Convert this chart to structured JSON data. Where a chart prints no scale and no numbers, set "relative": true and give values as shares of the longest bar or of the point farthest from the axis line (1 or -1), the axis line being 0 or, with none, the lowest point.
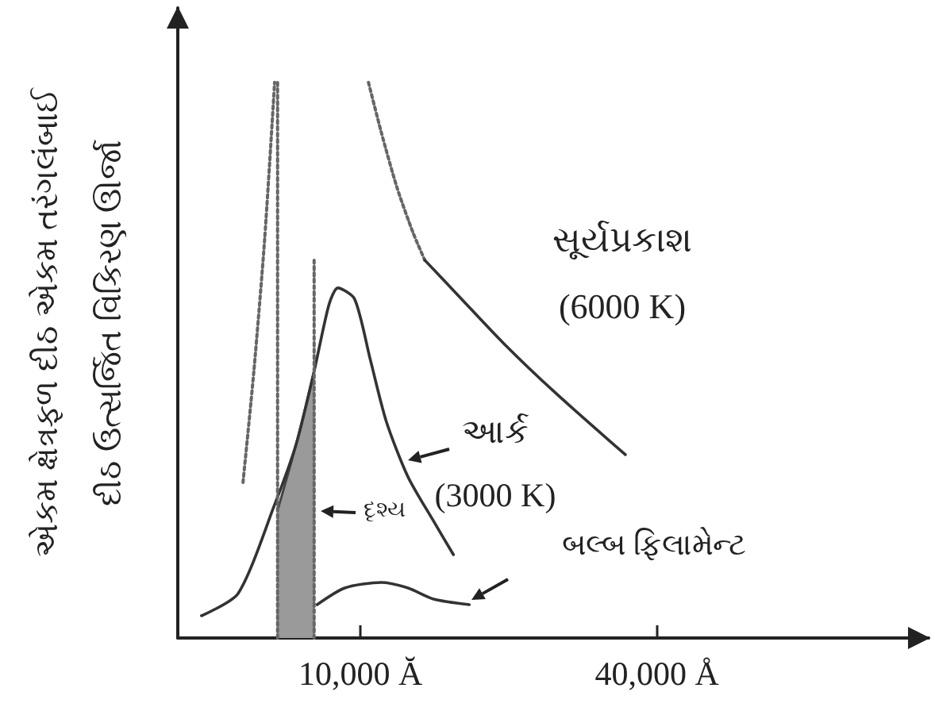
{
  "chart_data": {
    "type": "line",
    "relative": true,
    "ylabel": "એકમ ક્ષેત્રફળ દીઠ એકમ તરંગલંબાઈ\nદીઠ ઉત્સર્જિત વિકિરણ ઊર્જા",
    "xlim": [
      -8500,
      67500
    ],
    "xticks": [
      {
        "value": 10000,
        "label": "10,000 Ă"
      },
      {
        "value": 40000,
        "label": "40,000 Å"
      }
    ],
    "grid": false,
    "marker": "none",
    "annotations": [
      "સૂર્યપ્રકાશ\n(6000 K)",
      "આર્ક\n(3000 K)",
      "દૃશ્ય",
      "બલ્બ ફિલામેન્ટ"
    ],
    "series": [
      {
        "type": "area",
        "color": "#9a9a9a",
        "x": [
          1600,
          3500,
          5300
        ],
        "values": [
          0.23,
          0.35,
          0.48
        ]
      },
      {
        "color": "#333333",
        "line_style": "solid",
        "x": [
          -6100,
          -2400,
          1300,
          3500,
          5300,
          6800,
          7700,
          9400,
          11000,
          12600,
          14800,
          17400,
          19400
        ],
        "values": [
          0.04,
          0.08,
          0.24,
          0.35,
          0.48,
          0.6,
          0.63,
          0.61,
          0.5,
          0.39,
          0.29,
          0.21,
          0.15
        ]
      },
      {
        "color": "#333333",
        "line_style": "solid",
        "x": [
          5600,
          8400,
          12100,
          14800,
          17400,
          21000
        ],
        "values": [
          0.06,
          0.09,
          0.1,
          0.09,
          0.07,
          0.06
        ]
      },
      {
        "color": "#666666",
        "line_style": "dotted",
        "x": [
          10800,
          12100,
          13700,
          15300,
          16500
        ],
        "values": [
          1.0,
          0.91,
          0.81,
          0.73,
          0.68
        ]
      },
      {
        "color": "#333333",
        "line_style": "solid",
        "x": [
          16500,
          19700,
          24500,
          29800,
          36800
        ],
        "values": [
          0.68,
          0.62,
          0.53,
          0.44,
          0.33
        ]
      },
      {
        "color": "#666666",
        "line_style": "dotted",
        "x": [
          -1900,
          -800,
          300,
          1300
        ],
        "values": [
          0.28,
          0.48,
          0.72,
          1.0
        ]
      },
      {
        "color": "#666666",
        "line_style": "dotted",
        "x": [
          1600,
          1600
        ],
        "values": [
          0.0,
          1.0
        ]
      },
      {
        "color": "#666666",
        "line_style": "dotted",
        "x": [
          5300,
          5300
        ],
        "values": [
          0.0,
          0.68
        ]
      }
    ]
  }
}
